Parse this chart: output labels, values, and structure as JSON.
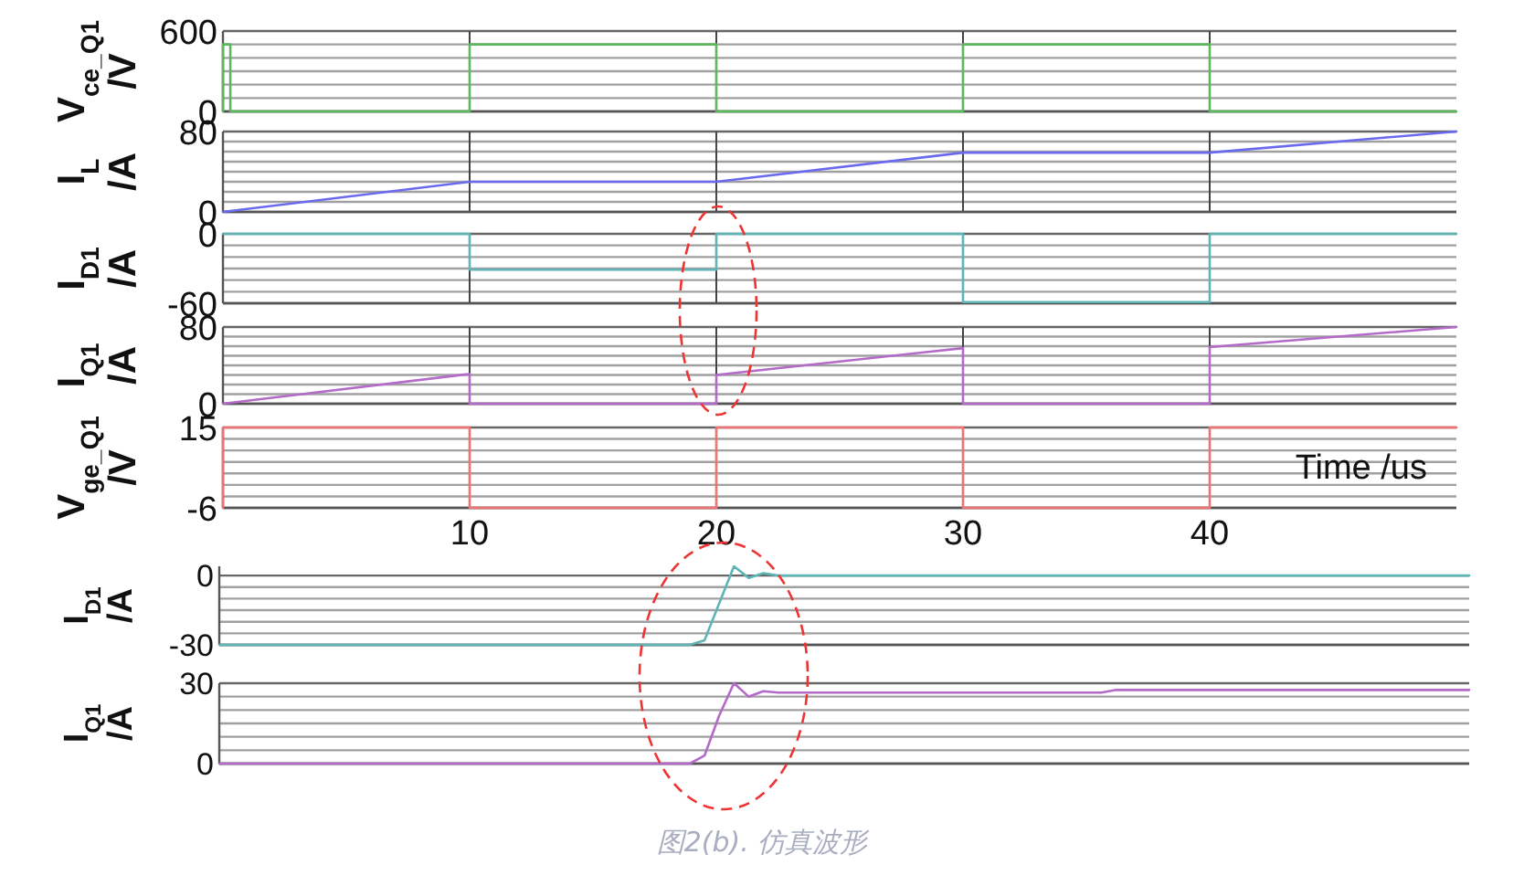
{
  "chart_data": [
    {
      "type": "line",
      "ylabel": "V$_{ce_Q1}$ /V",
      "xlim": [
        0,
        50
      ],
      "xticks": [
        10,
        20,
        30,
        40
      ],
      "ylim": [
        0,
        600
      ],
      "yticks": [
        0,
        {
          "value": 100,
          "label": null
        },
        {
          "value": 200,
          "label": null
        },
        {
          "value": 300,
          "label": null
        },
        {
          "value": 400,
          "label": null
        },
        {
          "value": 500,
          "label": null
        },
        600
      ],
      "tick_labels": "y",
      "grid": true,
      "series": [
        {
          "color": "#5cb85c",
          "x": [
            0,
            0,
            0.3,
            0.3,
            10,
            10,
            20,
            20,
            30,
            30,
            40,
            40,
            50
          ],
          "values": [
            0,
            500,
            500,
            0,
            0,
            500,
            500,
            0,
            0,
            500,
            500,
            0,
            0
          ]
        }
      ]
    },
    {
      "type": "line",
      "ylabel": "I$_{L}$ /A",
      "xlim": [
        0,
        50
      ],
      "xticks": [
        10,
        20,
        30,
        40
      ],
      "ylim": [
        0,
        80
      ],
      "yticks": [
        0,
        {
          "value": 10,
          "label": null
        },
        {
          "value": 20,
          "label": null
        },
        {
          "value": 30,
          "label": null
        },
        {
          "value": 40,
          "label": null
        },
        {
          "value": 50,
          "label": null
        },
        {
          "value": 60,
          "label": null
        },
        {
          "value": 70,
          "label": null
        },
        80
      ],
      "tick_labels": "y",
      "grid": true,
      "series": [
        {
          "color": "#6a6af0",
          "x": [
            0,
            10,
            20,
            30,
            40,
            50
          ],
          "values": [
            0,
            30,
            30,
            59,
            59,
            80
          ]
        }
      ]
    },
    {
      "type": "line",
      "ylabel": "I$_{D1}$ /A",
      "xlim": [
        0,
        50
      ],
      "xticks": [
        10,
        20,
        30,
        40
      ],
      "ylim": [
        -60,
        0
      ],
      "yticks": [
        -60,
        {
          "value": -50,
          "label": null
        },
        {
          "value": -40,
          "label": null
        },
        {
          "value": -30,
          "label": null
        },
        {
          "value": -20,
          "label": null
        },
        {
          "value": -10,
          "label": null
        },
        0
      ],
      "tick_labels": "y",
      "grid": true,
      "series": [
        {
          "color": "#5fb5b5",
          "x": [
            0,
            10,
            10,
            20,
            20,
            30,
            30,
            40,
            40,
            50
          ],
          "values": [
            0,
            0,
            -31,
            -31,
            0,
            0,
            -59,
            -59,
            0,
            0
          ]
        }
      ]
    },
    {
      "type": "line",
      "ylabel": "I$_{Q1}$ /A",
      "xlim": [
        0,
        50
      ],
      "xticks": [
        10,
        20,
        30,
        40
      ],
      "ylim": [
        0,
        80
      ],
      "yticks": [
        0,
        {
          "value": 10,
          "label": null
        },
        {
          "value": 20,
          "label": null
        },
        {
          "value": 30,
          "label": null
        },
        {
          "value": 40,
          "label": null
        },
        {
          "value": 50,
          "label": null
        },
        {
          "value": 60,
          "label": null
        },
        {
          "value": 70,
          "label": null
        },
        80
      ],
      "tick_labels": "y",
      "grid": true,
      "series": [
        {
          "color": "#b46ac8",
          "x": [
            0,
            10,
            10,
            20,
            20,
            30,
            30,
            40,
            40,
            50
          ],
          "values": [
            0,
            31,
            0,
            0,
            30,
            58,
            0,
            0,
            59,
            80
          ]
        }
      ]
    },
    {
      "type": "line",
      "ylabel": "V$_{ge_Q1}$ /V",
      "xlabel": "Time /us",
      "xlim": [
        0,
        50
      ],
      "xticks": [
        10,
        20,
        30,
        40
      ],
      "ylim": [
        -6,
        15
      ],
      "yticks": [
        -6,
        {
          "value": -3,
          "label": null
        },
        {
          "value": 0,
          "label": null
        },
        {
          "value": 3,
          "label": null
        },
        {
          "value": 6,
          "label": null
        },
        {
          "value": 9,
          "label": null
        },
        {
          "value": 12,
          "label": null
        },
        15
      ],
      "grid": true,
      "series": [
        {
          "color": "#f07272",
          "x": [
            0,
            0,
            10,
            10,
            20,
            20,
            30,
            30,
            40,
            40,
            50
          ],
          "values": [
            -6,
            15,
            15,
            -6,
            -6,
            15,
            15,
            -6,
            -6,
            15,
            15
          ]
        }
      ]
    },
    {
      "type": "line",
      "ylabel": "I$_{D1}$ /A",
      "ylim": [
        -30,
        4
      ],
      "yticks": [
        -30,
        {
          "value": -25,
          "label": null
        },
        {
          "value": -20,
          "label": null
        },
        {
          "value": -15,
          "label": null
        },
        {
          "value": -10,
          "label": null
        },
        {
          "value": -5,
          "label": null
        },
        0
      ],
      "tick_labels": "y",
      "grid": "y",
      "categories": [
        null,
        null,
        null,
        null,
        null,
        null,
        null,
        null,
        null,
        null,
        null,
        null,
        null,
        null,
        null,
        null,
        null,
        null,
        null,
        null,
        null,
        null,
        null,
        null,
        null,
        null,
        null,
        null,
        null,
        null,
        null,
        null,
        null,
        null,
        null,
        null,
        null,
        null,
        null,
        null,
        null,
        null,
        null,
        null,
        null,
        null,
        null,
        null,
        null,
        null,
        null,
        null,
        null,
        null,
        null,
        null,
        null,
        null,
        null,
        null,
        null,
        null,
        null,
        null,
        null,
        null,
        null,
        null,
        null,
        null,
        null,
        null,
        null,
        null,
        null,
        null,
        null,
        null,
        null,
        null,
        null,
        null,
        null,
        null,
        null,
        null
      ],
      "series": [
        {
          "color": "#5fb5b5",
          "values": [
            -30,
            -30,
            -30,
            -30,
            -30,
            -30,
            -30,
            -30,
            -30,
            -30,
            -30,
            -30,
            -30,
            -30,
            -30,
            -30,
            -30,
            -30,
            -30,
            -30,
            -30,
            -30,
            -30,
            -30,
            -30,
            -30,
            -30,
            -30,
            -30,
            -30,
            -30,
            -30,
            -30,
            -28,
            -12,
            4,
            -1,
            1,
            0,
            0,
            0,
            0,
            0,
            0,
            0,
            0,
            0,
            0,
            0,
            0,
            0,
            0,
            0,
            0,
            0,
            0,
            0,
            0,
            0,
            0,
            0,
            0,
            0,
            0,
            0,
            0,
            0,
            0,
            0,
            0,
            0,
            0,
            0,
            0,
            0,
            0,
            0,
            0,
            0,
            0,
            0,
            0,
            0,
            0,
            0,
            0
          ]
        }
      ]
    },
    {
      "type": "line",
      "ylabel": "I$_{Q1}$ /A",
      "ylim": [
        0,
        30
      ],
      "yticks": [
        0,
        {
          "value": 5,
          "label": null
        },
        {
          "value": 10,
          "label": null
        },
        {
          "value": 15,
          "label": null
        },
        {
          "value": 20,
          "label": null
        },
        {
          "value": 25,
          "label": null
        },
        30
      ],
      "tick_labels": "y",
      "grid": "y",
      "annotations": [
        "图2(b). 仿真波形"
      ],
      "categories": [
        null,
        null,
        null,
        null,
        null,
        null,
        null,
        null,
        null,
        null,
        null,
        null,
        null,
        null,
        null,
        null,
        null,
        null,
        null,
        null,
        null,
        null,
        null,
        null,
        null,
        null,
        null,
        null,
        null,
        null,
        null,
        null,
        null,
        null,
        null,
        null,
        null,
        null,
        null,
        null,
        null,
        null,
        null,
        null,
        null,
        null,
        null,
        null,
        null,
        null,
        null,
        null,
        null,
        null,
        null,
        null,
        null,
        null,
        null,
        null,
        null,
        null,
        null,
        null,
        null,
        null,
        null,
        null,
        null,
        null,
        null,
        null,
        null,
        null,
        null,
        null,
        null,
        null,
        null,
        null,
        null,
        null,
        null,
        null,
        null,
        null
      ],
      "series": [
        {
          "color": "#b46ac8",
          "values": [
            0,
            0,
            0,
            0,
            0,
            0,
            0,
            0,
            0,
            0,
            0,
            0,
            0,
            0,
            0,
            0,
            0,
            0,
            0,
            0,
            0,
            0,
            0,
            0,
            0,
            0,
            0,
            0,
            0,
            0,
            0,
            0,
            0,
            3,
            18,
            30,
            25,
            27,
            26.5,
            26.5,
            26.5,
            26.5,
            26.5,
            26.5,
            26.5,
            26.5,
            26.5,
            26.5,
            26.5,
            26.5,
            26.5,
            26.5,
            26.5,
            26.5,
            26.5,
            26.5,
            26.5,
            26.5,
            26.5,
            26.5,
            26.5,
            27.5,
            27.5,
            27.5,
            27.5,
            27.5,
            27.5,
            27.5,
            27.5,
            27.5,
            27.5,
            27.5,
            27.5,
            27.5,
            27.5,
            27.5,
            27.5,
            27.5,
            27.5,
            27.5,
            27.5,
            27.5,
            27.5,
            27.5,
            27.5,
            27.5
          ]
        }
      ]
    }
  ]
}
